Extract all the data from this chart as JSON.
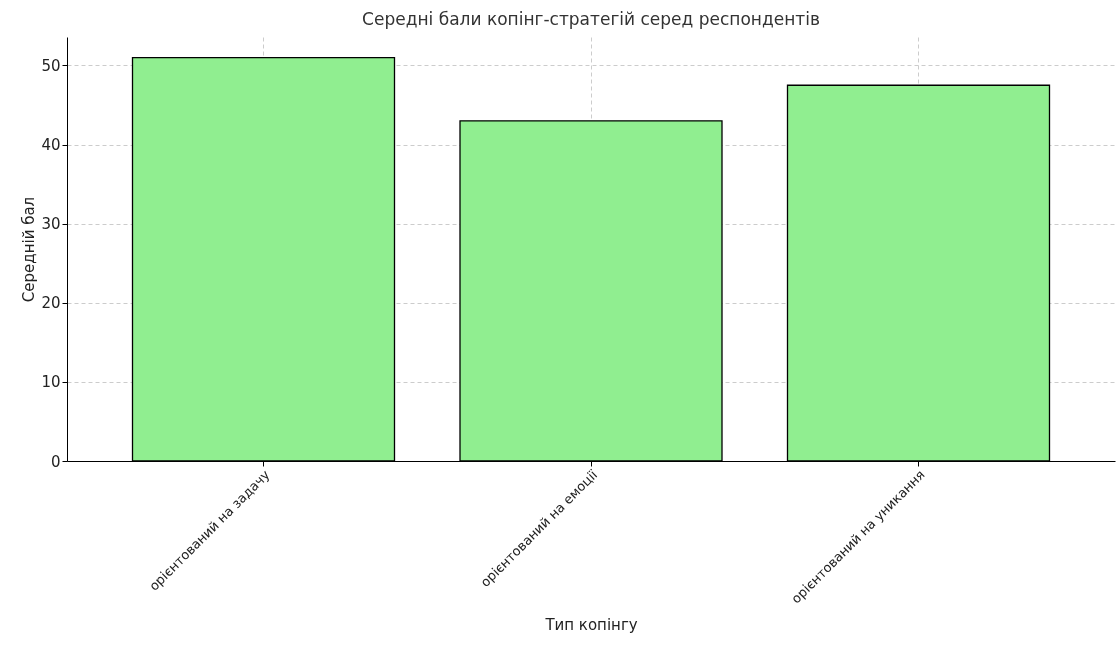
{
  "chart_data": {
    "type": "bar",
    "title": "Середні бали копінг-стратегій серед респондентів",
    "xlabel": "Тип копінгу",
    "ylabel": "Середній бал",
    "categories": [
      "орієнтований на задачу",
      "орієнтований на емоції",
      "орієнтований на уникання"
    ],
    "values": [
      51,
      43,
      47.5
    ],
    "color": "#90ee90",
    "ylim": [
      0,
      53.6
    ],
    "yticks": [
      0,
      10,
      20,
      30,
      40,
      50
    ],
    "grid": true
  }
}
